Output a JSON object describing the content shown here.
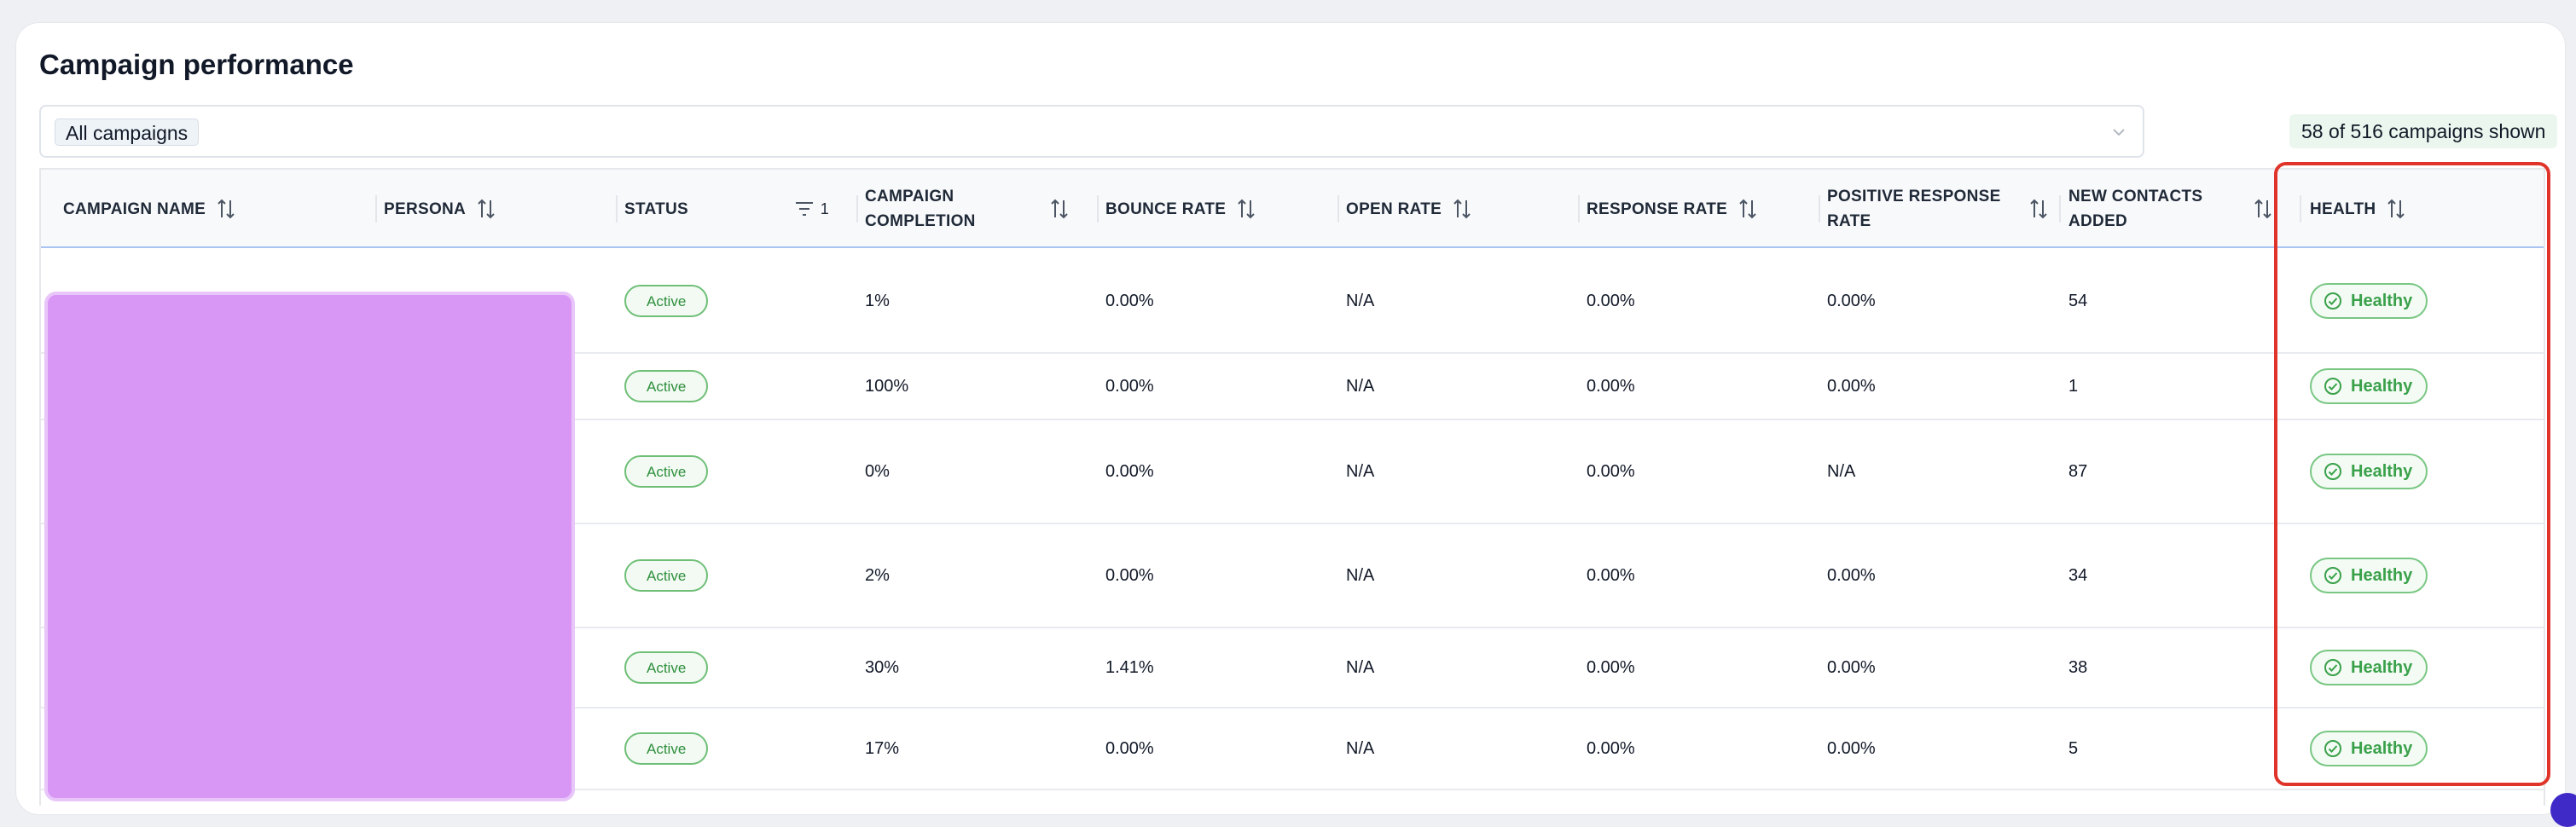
{
  "page": {
    "title": "Campaign performance",
    "filter_chip": "All campaigns",
    "count_badge": "58 of 516 campaigns shown"
  },
  "table": {
    "columns": [
      {
        "key": "campaign_name",
        "label": "CAMPAIGN NAME"
      },
      {
        "key": "persona",
        "label": "PERSONA"
      },
      {
        "key": "status",
        "label": "STATUS",
        "filter_count": "1"
      },
      {
        "key": "campaign_completion",
        "label": "CAMPAIGN\nCOMPLETION"
      },
      {
        "key": "bounce_rate",
        "label": "BOUNCE RATE"
      },
      {
        "key": "open_rate",
        "label": "OPEN RATE"
      },
      {
        "key": "response_rate",
        "label": "RESPONSE RATE"
      },
      {
        "key": "positive_response_rate",
        "label": "POSITIVE RESPONSE\nRATE"
      },
      {
        "key": "new_contacts_added",
        "label": "NEW CONTACTS\nADDED"
      },
      {
        "key": "health",
        "label": "HEALTH"
      }
    ],
    "rows": [
      {
        "status": "Active",
        "completion": "1%",
        "bounce": "0.00%",
        "open": "N/A",
        "response": "0.00%",
        "positive": "0.00%",
        "contacts": "54",
        "health": "Healthy"
      },
      {
        "status": "Active",
        "completion": "100%",
        "bounce": "0.00%",
        "open": "N/A",
        "response": "0.00%",
        "positive": "0.00%",
        "contacts": "1",
        "health": "Healthy"
      },
      {
        "status": "Active",
        "completion": "0%",
        "bounce": "0.00%",
        "open": "N/A",
        "response": "0.00%",
        "positive": "N/A",
        "contacts": "87",
        "health": "Healthy"
      },
      {
        "status": "Active",
        "completion": "2%",
        "bounce": "0.00%",
        "open": "N/A",
        "response": "0.00%",
        "positive": "0.00%",
        "contacts": "34",
        "health": "Healthy"
      },
      {
        "status": "Active",
        "completion": "30%",
        "bounce": "1.41%",
        "open": "N/A",
        "response": "0.00%",
        "positive": "0.00%",
        "contacts": "38",
        "health": "Healthy"
      },
      {
        "status": "Active",
        "completion": "17%",
        "bounce": "0.00%",
        "open": "N/A",
        "response": "0.00%",
        "positive": "0.00%",
        "contacts": "5",
        "health": "Healthy"
      }
    ]
  },
  "colors": {
    "accent_highlight": "#e0342a",
    "healthy_green": "#3aa14a",
    "redaction": "#d896f5"
  },
  "icons": [
    "sort-icon",
    "filter-icon",
    "chevron-down-icon",
    "check-circle-icon"
  ]
}
